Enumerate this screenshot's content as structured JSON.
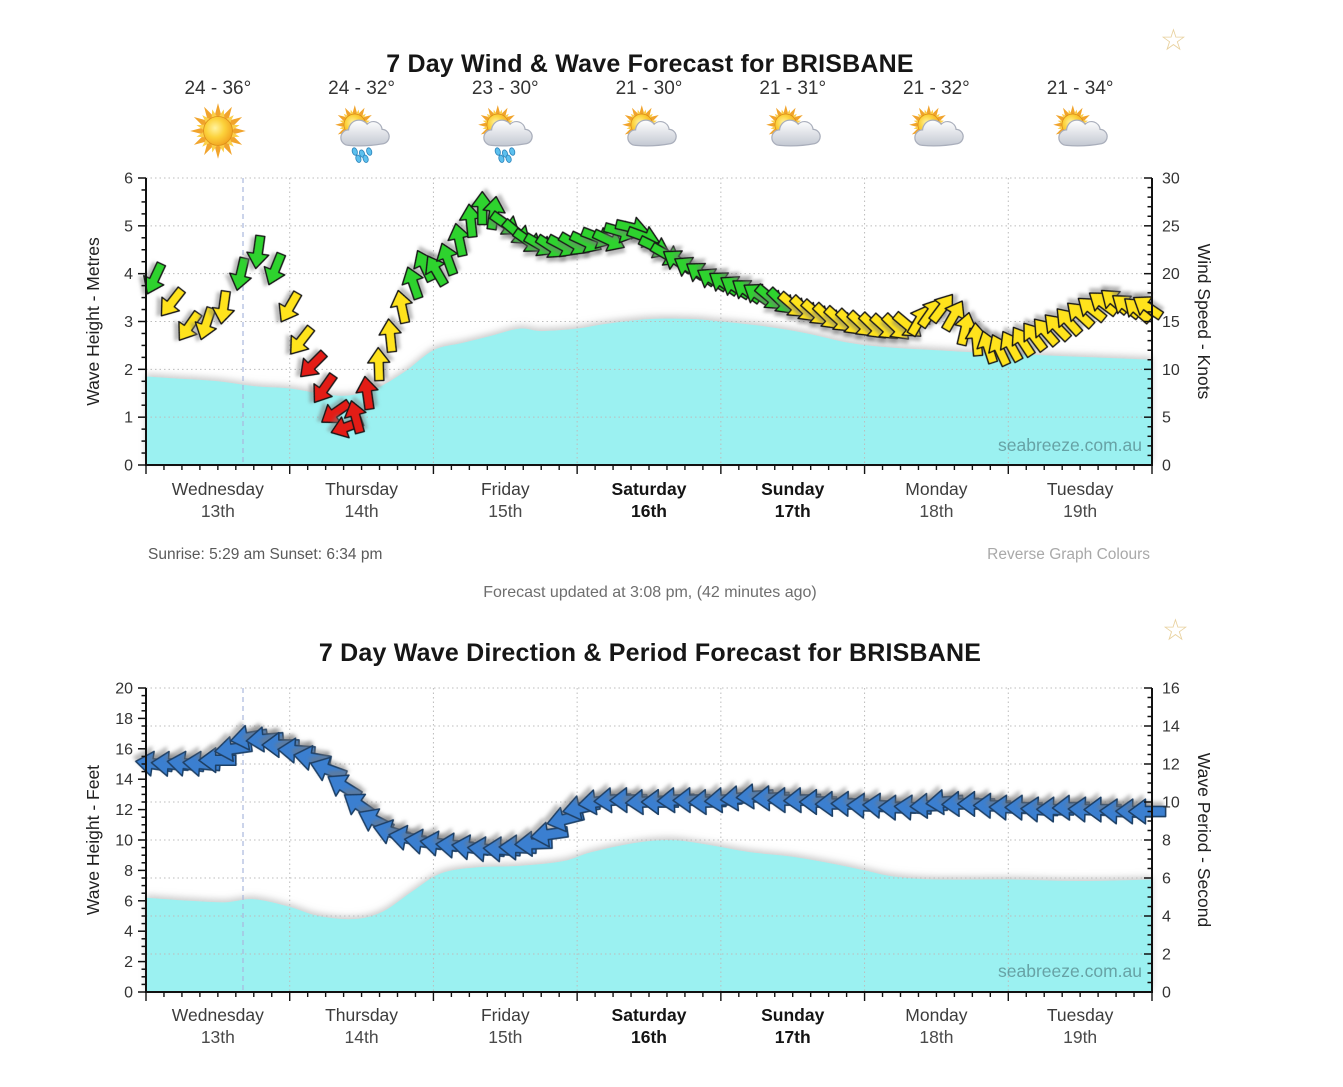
{
  "titles": {
    "wind": "7 Day Wind & Wave Forecast for BRISBANE",
    "wave": "7 Day Wave Direction & Period Forecast for BRISBANE"
  },
  "icons": {
    "favorite_star": "☆"
  },
  "info": {
    "sunrise_sunset": "Sunrise: 5:29 am  Sunset: 6:34 pm",
    "reverse_link": "Reverse Graph Colours",
    "updated": "Forecast updated at 3:08 pm, (42 minutes ago)",
    "watermark": "seabreeze.com.au"
  },
  "days": [
    {
      "label": "Wednesday",
      "date": "13th",
      "temp": "24 - 36°",
      "icon": "sunny",
      "bold": false
    },
    {
      "label": "Thursday",
      "date": "14th",
      "temp": "24 - 32°",
      "icon": "rain",
      "bold": false
    },
    {
      "label": "Friday",
      "date": "15th",
      "temp": "23 - 30°",
      "icon": "rain",
      "bold": false
    },
    {
      "label": "Saturday",
      "date": "16th",
      "temp": "21 - 30°",
      "icon": "partly",
      "bold": true
    },
    {
      "label": "Sunday",
      "date": "17th",
      "temp": "21 - 31°",
      "icon": "partly",
      "bold": true
    },
    {
      "label": "Monday",
      "date": "18th",
      "temp": "21 - 32°",
      "icon": "partly",
      "bold": false
    },
    {
      "label": "Tuesday",
      "date": "19th",
      "temp": "21 - 34°",
      "icon": "partly",
      "bold": false
    }
  ],
  "colors": {
    "cyan_area": "#9bf1f1",
    "arrow_green": "#2fd32f",
    "arrow_yellow": "#ffe31e",
    "arrow_red": "#e31b17",
    "arrow_blue": "#3b7fd0",
    "arrow_blue_stroke": "#1e3f66",
    "arrow_stroke": "#151515",
    "grid": "#bcbcbc",
    "axis": "#111111",
    "now_line": "#a9b7dd",
    "star": "#e8d19e",
    "watermark": "#56888c",
    "day_label": "#3c3c3c",
    "day_label_bold": "#141414"
  },
  "chart_data": [
    {
      "type": "area",
      "title": "7 Day Wind & Wave Forecast for BRISBANE",
      "left_axis": {
        "label": "Wave Height - Metres",
        "min": 0,
        "max": 6,
        "step": 1,
        "minor": 0.25
      },
      "right_axis": {
        "label": "Wind Speed - Knots",
        "min": 0,
        "max": 30,
        "step": 5,
        "minor": 1
      },
      "x_categories": [
        "Wednesday 13th",
        "Thursday 14th",
        "Friday 15th",
        "Saturday 16th",
        "Sunday 17th",
        "Monday 18th",
        "Tuesday 19th"
      ],
      "grid": "dotted, horizontal each 5 knots, vertical each day boundary",
      "now_marker_t": 0.675,
      "wave_area_metres": [
        [
          0,
          1.85
        ],
        [
          0.25,
          1.8
        ],
        [
          0.5,
          1.75
        ],
        [
          0.75,
          1.65
        ],
        [
          1.0,
          1.6
        ],
        [
          1.2,
          1.5
        ],
        [
          1.4,
          1.45
        ],
        [
          1.6,
          1.6
        ],
        [
          1.8,
          1.95
        ],
        [
          2.0,
          2.4
        ],
        [
          2.2,
          2.55
        ],
        [
          2.4,
          2.7
        ],
        [
          2.6,
          2.85
        ],
        [
          2.75,
          2.8
        ],
        [
          3.0,
          2.85
        ],
        [
          3.2,
          2.95
        ],
        [
          3.5,
          3.05
        ],
        [
          3.8,
          3.05
        ],
        [
          4.0,
          3.0
        ],
        [
          4.3,
          2.9
        ],
        [
          4.6,
          2.75
        ],
        [
          4.9,
          2.55
        ],
        [
          5.2,
          2.45
        ],
        [
          5.5,
          2.4
        ],
        [
          5.8,
          2.35
        ],
        [
          6.2,
          2.3
        ],
        [
          6.6,
          2.25
        ],
        [
          7,
          2.2
        ]
      ],
      "wind_arrows_t_knots_color_angle": [
        [
          0.06,
          19.5,
          "g",
          115
        ],
        [
          0.18,
          17,
          "y",
          128
        ],
        [
          0.3,
          14.5,
          "y",
          125
        ],
        [
          0.42,
          14.8,
          "y",
          108
        ],
        [
          0.54,
          16.5,
          "y",
          98
        ],
        [
          0.66,
          20,
          "g",
          103
        ],
        [
          0.78,
          22.3,
          "g",
          98
        ],
        [
          0.9,
          20.5,
          "g",
          112
        ],
        [
          1.0,
          16.5,
          "y",
          120
        ],
        [
          1.08,
          13,
          "y",
          128
        ],
        [
          1.16,
          10.5,
          "r",
          135
        ],
        [
          1.24,
          8,
          "r",
          125
        ],
        [
          1.32,
          5.5,
          "r",
          145
        ],
        [
          1.4,
          4,
          "r",
          160
        ],
        [
          1.46,
          5,
          "r",
          255
        ],
        [
          1.54,
          7.5,
          "r",
          262
        ],
        [
          1.62,
          10.5,
          "y",
          268
        ],
        [
          1.7,
          13.5,
          "y",
          264
        ],
        [
          1.78,
          16.5,
          "y",
          258
        ],
        [
          1.86,
          19,
          "g",
          251
        ],
        [
          1.94,
          20.8,
          "g",
          245
        ],
        [
          2.02,
          20.3,
          "g",
          240
        ],
        [
          2.1,
          21.5,
          "g",
          250
        ],
        [
          2.18,
          23.5,
          "g",
          258
        ],
        [
          2.26,
          25.5,
          "g",
          264
        ],
        [
          2.34,
          26.8,
          "g",
          270
        ],
        [
          2.42,
          26.3,
          "g",
          278
        ],
        [
          2.5,
          25.2,
          "g",
          35
        ],
        [
          2.58,
          24.3,
          "g",
          40
        ],
        [
          2.66,
          23.4,
          "g",
          35
        ],
        [
          2.74,
          23,
          "g",
          30
        ],
        [
          2.82,
          22.8,
          "g",
          33
        ],
        [
          2.9,
          22.9,
          "g",
          28
        ],
        [
          2.98,
          23.1,
          "g",
          30
        ],
        [
          3.06,
          23.3,
          "g",
          25
        ],
        [
          3.14,
          23.8,
          "g",
          21
        ],
        [
          3.22,
          23.5,
          "g",
          25
        ],
        [
          3.3,
          24.4,
          "g",
          16
        ],
        [
          3.38,
          24.8,
          "g",
          13
        ],
        [
          3.46,
          23.9,
          "g",
          20
        ],
        [
          3.54,
          22.8,
          "g",
          26
        ],
        [
          3.62,
          22,
          "g",
          30
        ],
        [
          3.7,
          21.3,
          "g",
          214
        ],
        [
          3.78,
          20.6,
          "g",
          212
        ],
        [
          3.86,
          20,
          "g",
          215
        ],
        [
          3.94,
          19.4,
          "g",
          212
        ],
        [
          4.02,
          19,
          "g",
          215
        ],
        [
          4.1,
          18.6,
          "g",
          213
        ],
        [
          4.18,
          18.2,
          "g",
          216
        ],
        [
          4.26,
          17.8,
          "g",
          214
        ],
        [
          4.34,
          17.5,
          "g",
          40
        ],
        [
          4.42,
          17.1,
          "g",
          44
        ],
        [
          4.5,
          16.7,
          "y",
          41
        ],
        [
          4.58,
          16.3,
          "y",
          44
        ],
        [
          4.66,
          15.9,
          "y",
          42
        ],
        [
          4.74,
          15.5,
          "y",
          44
        ],
        [
          4.82,
          15.2,
          "y",
          42
        ],
        [
          4.9,
          14.9,
          "y",
          44
        ],
        [
          4.98,
          14.7,
          "y",
          43
        ],
        [
          5.06,
          14.5,
          "y",
          44
        ],
        [
          5.14,
          14.4,
          "y",
          42
        ],
        [
          5.22,
          14.4,
          "y",
          44
        ],
        [
          5.3,
          14.6,
          "y",
          40
        ],
        [
          5.38,
          15.1,
          "y",
          300
        ],
        [
          5.46,
          15.9,
          "y",
          305
        ],
        [
          5.54,
          16.4,
          "y",
          307
        ],
        [
          5.62,
          15.6,
          "y",
          300
        ],
        [
          5.7,
          14.2,
          "y",
          283
        ],
        [
          5.78,
          13.1,
          "y",
          265
        ],
        [
          5.86,
          12.3,
          "y",
          252
        ],
        [
          5.94,
          12,
          "y",
          245
        ],
        [
          6.02,
          12.4,
          "y",
          241
        ],
        [
          6.1,
          12.9,
          "y",
          237
        ],
        [
          6.18,
          13.4,
          "y",
          233
        ],
        [
          6.26,
          13.9,
          "y",
          229
        ],
        [
          6.34,
          14.4,
          "y",
          226
        ],
        [
          6.42,
          15,
          "y",
          228
        ],
        [
          6.5,
          15.7,
          "y",
          223
        ],
        [
          6.58,
          16.3,
          "y",
          219
        ],
        [
          6.66,
          16.9,
          "y",
          217
        ],
        [
          6.74,
          17.1,
          "y",
          220
        ],
        [
          6.82,
          16.6,
          "y",
          218
        ],
        [
          6.9,
          16.2,
          "y",
          221
        ],
        [
          6.97,
          16.5,
          "y",
          214
        ]
      ]
    },
    {
      "type": "area",
      "title": "7 Day Wave Direction & Period Forecast for BRISBANE",
      "left_axis": {
        "label": "Wave Height - Feet",
        "min": 0,
        "max": 20,
        "step": 2,
        "minor": 0.5
      },
      "right_axis": {
        "label": "Wave Period - Second",
        "min": 0,
        "max": 16,
        "step": 2,
        "minor": 0.5
      },
      "x_categories": [
        "Wednesday 13th",
        "Thursday 14th",
        "Friday 15th",
        "Saturday 16th",
        "Sunday 17th",
        "Monday 18th",
        "Tuesday 19th"
      ],
      "grid": "dotted, horizontal each 2 seconds, vertical each day boundary",
      "now_marker_t": 0.675,
      "wave_area_feet": [
        [
          0,
          6.2
        ],
        [
          0.3,
          6.0
        ],
        [
          0.55,
          5.9
        ],
        [
          0.75,
          6.1
        ],
        [
          1.0,
          5.6
        ],
        [
          1.2,
          5.0
        ],
        [
          1.45,
          4.8
        ],
        [
          1.65,
          5.3
        ],
        [
          1.85,
          6.6
        ],
        [
          2.05,
          7.8
        ],
        [
          2.3,
          8.2
        ],
        [
          2.6,
          8.3
        ],
        [
          2.9,
          8.6
        ],
        [
          3.1,
          9.2
        ],
        [
          3.4,
          9.8
        ],
        [
          3.65,
          10.0
        ],
        [
          3.9,
          9.7
        ],
        [
          4.2,
          9.2
        ],
        [
          4.5,
          8.9
        ],
        [
          4.8,
          8.4
        ],
        [
          5.0,
          8.0
        ],
        [
          5.2,
          7.6
        ],
        [
          5.5,
          7.4
        ],
        [
          6.0,
          7.4
        ],
        [
          6.5,
          7.3
        ],
        [
          7,
          7.4
        ]
      ],
      "period_arrows_t_seconds_angle": [
        [
          0.06,
          12,
          188
        ],
        [
          0.17,
          12,
          184
        ],
        [
          0.28,
          12,
          188
        ],
        [
          0.39,
          12,
          185
        ],
        [
          0.5,
          12.2,
          180
        ],
        [
          0.61,
          12.8,
          172
        ],
        [
          0.72,
          13.4,
          170
        ],
        [
          0.83,
          13.3,
          175
        ],
        [
          0.94,
          13,
          180
        ],
        [
          1.05,
          12.7,
          184
        ],
        [
          1.16,
          12.3,
          190
        ],
        [
          1.27,
          11.7,
          200
        ],
        [
          1.38,
          10.8,
          212
        ],
        [
          1.49,
          9.8,
          215
        ],
        [
          1.6,
          9,
          207
        ],
        [
          1.71,
          8.4,
          197
        ],
        [
          1.82,
          8.1,
          190
        ],
        [
          1.93,
          7.9,
          188
        ],
        [
          2.04,
          7.8,
          188
        ],
        [
          2.15,
          7.7,
          185
        ],
        [
          2.26,
          7.6,
          188
        ],
        [
          2.37,
          7.5,
          186
        ],
        [
          2.48,
          7.5,
          184
        ],
        [
          2.59,
          7.6,
          182
        ],
        [
          2.7,
          7.8,
          178
        ],
        [
          2.81,
          8.3,
          172
        ],
        [
          2.92,
          9.1,
          166
        ],
        [
          3.03,
          9.7,
          168
        ],
        [
          3.14,
          10,
          172
        ],
        [
          3.25,
          10.1,
          176
        ],
        [
          3.36,
          10.1,
          179
        ],
        [
          3.47,
          10,
          177
        ],
        [
          3.58,
          10,
          180
        ],
        [
          3.69,
          10.1,
          177
        ],
        [
          3.8,
          10.1,
          179
        ],
        [
          3.91,
          10,
          178
        ],
        [
          4.02,
          10.1,
          176
        ],
        [
          4.13,
          10.2,
          175
        ],
        [
          4.24,
          10.3,
          176
        ],
        [
          4.35,
          10.2,
          178
        ],
        [
          4.46,
          10.1,
          179
        ],
        [
          4.57,
          10.1,
          178
        ],
        [
          4.68,
          10,
          180
        ],
        [
          4.79,
          9.9,
          179
        ],
        [
          4.9,
          9.9,
          181
        ],
        [
          5.01,
          9.8,
          182
        ],
        [
          5.12,
          9.8,
          183
        ],
        [
          5.23,
          9.7,
          181
        ],
        [
          5.34,
          9.7,
          184
        ],
        [
          5.45,
          9.8,
          178
        ],
        [
          5.56,
          10,
          175
        ],
        [
          5.67,
          9.9,
          178
        ],
        [
          5.78,
          9.9,
          180
        ],
        [
          5.89,
          9.8,
          181
        ],
        [
          6.0,
          9.7,
          182
        ],
        [
          6.11,
          9.7,
          181
        ],
        [
          6.22,
          9.6,
          183
        ],
        [
          6.33,
          9.6,
          181
        ],
        [
          6.44,
          9.7,
          179
        ],
        [
          6.55,
          9.6,
          182
        ],
        [
          6.66,
          9.6,
          180
        ],
        [
          6.77,
          9.5,
          182
        ],
        [
          6.88,
          9.5,
          181
        ],
        [
          6.97,
          9.5,
          180
        ]
      ]
    }
  ]
}
